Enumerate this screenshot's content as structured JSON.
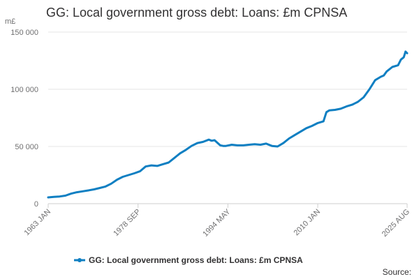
{
  "title": "GG: Local government gross debt: Loans: £m CPNSA",
  "unit_label": "m£",
  "source_label": "Source:",
  "colors": {
    "series": "#0f7fc2",
    "grid": "#e6e6e6",
    "axis": "#cfcfcf"
  },
  "chart_data": {
    "type": "line",
    "title": "GG: Local government gross debt: Loans: £m CPNSA",
    "ylabel": "m£",
    "ylim": [
      0,
      150000
    ],
    "y_ticks": [
      0,
      50000,
      100000,
      150000
    ],
    "y_tick_labels": [
      "0",
      "50 000",
      "100 000",
      "150 000"
    ],
    "x_tick_labels": [
      "1963 JAN",
      "1978 SEP",
      "1994 MAY",
      "2010 JAN",
      "2025 AUG"
    ],
    "x_ticks": [
      1963.0,
      1978.67,
      1994.33,
      2010.0,
      2025.58
    ],
    "xlim": [
      1963.0,
      2025.58
    ],
    "grid": true,
    "legend": "bottom",
    "series": [
      {
        "name": "GG: Local government gross debt: Loans: £m CPNSA",
        "x": [
          1963.0,
          1964,
          1965,
          1966,
          1967,
          1968,
          1969,
          1970,
          1971,
          1972,
          1973,
          1974,
          1975,
          1976,
          1977,
          1978,
          1979,
          1980,
          1981,
          1982,
          1983,
          1984,
          1985,
          1986,
          1987,
          1988,
          1989,
          1990,
          1991,
          1991.5,
          1992,
          1993,
          1993.5,
          1994,
          1995,
          1996,
          1997,
          1998,
          1999,
          2000,
          2001,
          2002,
          2003,
          2004,
          2005,
          2006,
          2007,
          2008,
          2009,
          2010,
          2011,
          2011.5,
          2012,
          2013,
          2014,
          2014.5,
          2015,
          2016,
          2017,
          2018,
          2019,
          2020,
          2021,
          2021.5,
          2022,
          2023,
          2024,
          2024.5,
          2025,
          2025.3,
          2025.58
        ],
        "values": [
          5500,
          5900,
          6300,
          7000,
          8800,
          10000,
          10800,
          11600,
          12500,
          13700,
          15000,
          17500,
          21000,
          23500,
          25000,
          26500,
          28300,
          32500,
          33500,
          33000,
          34500,
          36000,
          40000,
          44000,
          47000,
          50500,
          53000,
          54000,
          56000,
          55000,
          55500,
          51000,
          50500,
          50500,
          51500,
          51000,
          51000,
          51500,
          52000,
          51500,
          52500,
          50500,
          50000,
          53000,
          57000,
          60000,
          63000,
          66000,
          68000,
          70500,
          72000,
          80000,
          81500,
          82000,
          83000,
          84000,
          85000,
          86500,
          89000,
          93000,
          100000,
          108000,
          111000,
          112000,
          115500,
          119500,
          121000,
          126000,
          128000,
          133000,
          131500
        ]
      }
    ]
  }
}
